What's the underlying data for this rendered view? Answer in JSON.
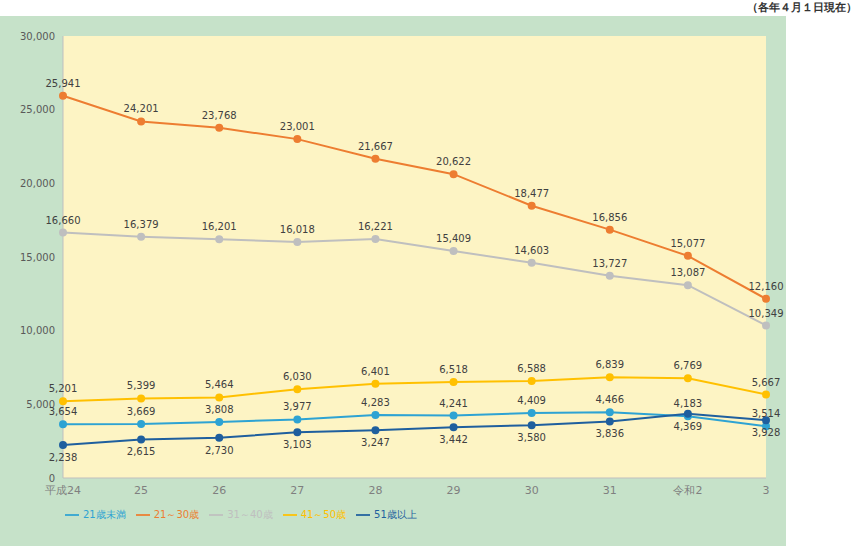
{
  "chart_data": {
    "type": "line",
    "subtitle": "（各年４月１日現在）",
    "categories": [
      "平成24",
      "25",
      "26",
      "27",
      "28",
      "29",
      "30",
      "31",
      "令和2",
      "3"
    ],
    "series": [
      {
        "name": "21歳未満",
        "color": "#2ea3d3",
        "marker": "circle",
        "values": [
          3654,
          3669,
          3808,
          3977,
          4283,
          4241,
          4409,
          4466,
          4183,
          3514
        ],
        "value_labels": [
          "3,654",
          "3,669",
          "3,808",
          "3,977",
          "4,283",
          "4,241",
          "4,409",
          "4,466",
          "4,183",
          "3,514"
        ]
      },
      {
        "name": "21～30歳",
        "color": "#ed7d31",
        "marker": "circle",
        "values": [
          25941,
          24201,
          23768,
          23001,
          21667,
          20622,
          18477,
          16856,
          15077,
          12160
        ],
        "value_labels": [
          "25,941",
          "24,201",
          "23,768",
          "23,001",
          "21,667",
          "20,622",
          "18,477",
          "16,856",
          "15,077",
          "12,160"
        ]
      },
      {
        "name": "31～40歳",
        "color": "#bfbfbf",
        "marker": "circle",
        "values": [
          16660,
          16379,
          16201,
          16018,
          16221,
          15409,
          14603,
          13727,
          13087,
          10349
        ],
        "value_labels": [
          "16,660",
          "16,379",
          "16,201",
          "16,018",
          "16,221",
          "15,409",
          "14,603",
          "13,727",
          "13,087",
          "10,349"
        ]
      },
      {
        "name": "41～50歳",
        "color": "#ffc000",
        "marker": "circle",
        "values": [
          5201,
          5399,
          5464,
          6030,
          6401,
          6518,
          6588,
          6839,
          6769,
          5667
        ],
        "value_labels": [
          "5,201",
          "5,399",
          "5,464",
          "6,030",
          "6,401",
          "6,518",
          "6,588",
          "6,839",
          "6,769",
          "5,667"
        ]
      },
      {
        "name": "51歳以上",
        "color": "#1f5f9e",
        "marker": "circle",
        "values": [
          2238,
          2615,
          2730,
          3103,
          3247,
          3442,
          3580,
          3836,
          4369,
          3928
        ],
        "value_labels": [
          "2,238",
          "2,615",
          "2,730",
          "3,103",
          "3,247",
          "3,442",
          "3,580",
          "3,836",
          "4,369",
          "3,928"
        ]
      }
    ],
    "ylim": [
      0,
      30000
    ],
    "yticks": [
      0,
      {
        "value": 5000,
        "label": "5,000"
      },
      {
        "value": 10000,
        "label": "10,000"
      },
      {
        "value": 15000,
        "label": "15,000"
      },
      {
        "value": 20000,
        "label": "20,000"
      },
      {
        "value": 25000,
        "label": "25,000"
      },
      {
        "value": 30000,
        "label": "30,000"
      }
    ],
    "grid": false,
    "legend": "bottom",
    "data_labels": true
  }
}
